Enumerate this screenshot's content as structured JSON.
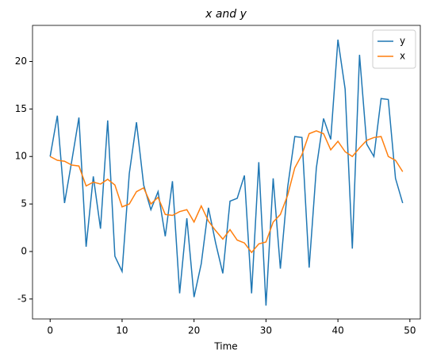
{
  "chart_data": {
    "type": "line",
    "title": "x and y",
    "xlabel": "Time",
    "x": [
      0,
      1,
      2,
      3,
      4,
      5,
      6,
      7,
      8,
      9,
      10,
      11,
      12,
      13,
      14,
      15,
      16,
      17,
      18,
      19,
      20,
      21,
      22,
      23,
      24,
      25,
      26,
      27,
      28,
      29,
      30,
      31,
      32,
      33,
      34,
      35,
      36,
      37,
      38,
      39,
      40,
      41,
      42,
      43,
      44,
      45,
      46,
      47,
      48,
      49
    ],
    "series": [
      {
        "name": "y",
        "color": "#1f77b4",
        "values": [
          10.0,
          14.3,
          5.1,
          9.5,
          14.1,
          0.5,
          7.9,
          2.4,
          13.8,
          -0.5,
          -2.1,
          8.2,
          13.6,
          7.0,
          4.4,
          6.3,
          1.6,
          7.4,
          -4.4,
          3.5,
          -4.8,
          -1.3,
          4.6,
          0.9,
          -2.3,
          5.3,
          5.6,
          8.0,
          -4.4,
          9.4,
          -5.7,
          7.7,
          -1.8,
          6.7,
          12.1,
          12.0,
          -1.7,
          8.8,
          14.0,
          11.8,
          22.3,
          17.1,
          0.3,
          20.7,
          11.3,
          10.0,
          16.1,
          16.0,
          7.7,
          5.1
        ]
      },
      {
        "name": "x",
        "color": "#ff7f0e",
        "values": [
          10.0,
          9.6,
          9.5,
          9.1,
          9.0,
          6.9,
          7.3,
          7.1,
          7.6,
          7.0,
          4.7,
          5.0,
          6.3,
          6.7,
          5.0,
          5.7,
          3.9,
          3.8,
          4.2,
          4.4,
          3.1,
          4.8,
          3.2,
          2.2,
          1.3,
          2.3,
          1.2,
          0.9,
          -0.1,
          0.8,
          1.0,
          3.1,
          3.9,
          5.9,
          8.8,
          10.2,
          12.4,
          12.7,
          12.4,
          10.7,
          11.6,
          10.5,
          10.0,
          10.9,
          11.7,
          12.0,
          12.1,
          10.0,
          9.6,
          8.4
        ]
      }
    ],
    "xlim": [
      -2.45,
      51.45
    ],
    "xticks": [
      0,
      10,
      20,
      30,
      40,
      50
    ],
    "ylim": [
      -7.1,
      23.8
    ],
    "yticks": [
      -5,
      0,
      5,
      10,
      15,
      20
    ],
    "legend": "upper right"
  }
}
